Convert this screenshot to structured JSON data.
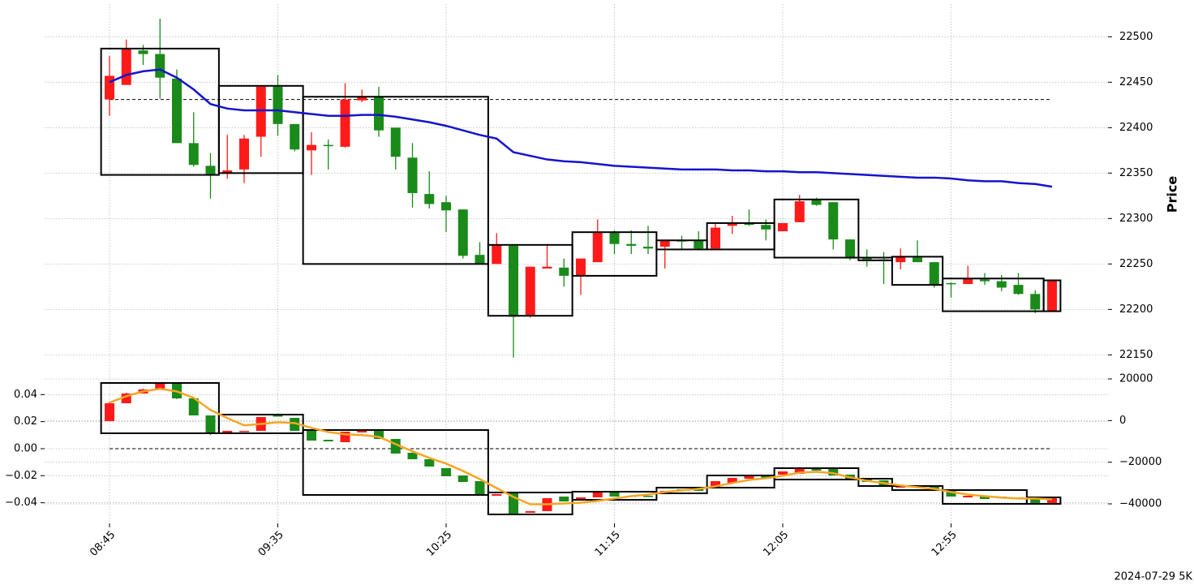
{
  "chart_data": [
    {
      "type": "candlestick",
      "ylabel": "Price",
      "y_axis_side": "right",
      "grid": true,
      "up_color": "#ff1a1a",
      "down_color": "#1a8a1a",
      "categories": [
        "08:45",
        null,
        null,
        null,
        null,
        null,
        null,
        null,
        null,
        null,
        "09:35",
        null,
        null,
        null,
        null,
        null,
        null,
        null,
        null,
        null,
        "10:25",
        null,
        null,
        null,
        null,
        null,
        null,
        null,
        null,
        null,
        "11:15",
        null,
        null,
        null,
        null,
        null,
        null,
        null,
        null,
        null,
        "12:05",
        null,
        null,
        null,
        null,
        null,
        null,
        null,
        null,
        null,
        "12:55",
        null,
        null,
        null,
        null,
        null,
        null
      ],
      "open": [
        22431,
        22447,
        22485,
        22481,
        22454,
        22383,
        22358,
        22350,
        22354,
        22390,
        22445,
        22404,
        22375,
        22381,
        22379,
        22430,
        22434,
        22400,
        22367,
        22327,
        22318,
        22310,
        22260,
        22250,
        22270,
        22194,
        22245,
        22246,
        22237,
        22252,
        22285,
        22272,
        22269,
        22269,
        22276,
        22276,
        22267,
        22292,
        22295,
        22293,
        22286,
        22296,
        22321,
        22318,
        22277,
        22257,
        22255,
        22252,
        22257,
        22252,
        22229,
        22228,
        22233,
        22231,
        22227,
        22217,
        22198
      ],
      "high": [
        22479,
        22497,
        22491,
        22520,
        22464,
        22417,
        22372,
        22392,
        22392,
        22445,
        22458,
        22404,
        22395,
        22387,
        22449,
        22442,
        22445,
        22400,
        22383,
        22352,
        22325,
        22310,
        22274,
        22284,
        22270,
        22247,
        22272,
        22256,
        22256,
        22299,
        22287,
        22287,
        22292,
        22276,
        22281,
        22286,
        22294,
        22303,
        22310,
        22299,
        22295,
        22326,
        22323,
        22318,
        22277,
        22266,
        22263,
        22267,
        22276,
        22252,
        22230,
        22248,
        22240,
        22238,
        22240,
        22221,
        22232
      ],
      "low": [
        22413,
        22447,
        22469,
        22432,
        22383,
        22357,
        22322,
        22344,
        22339,
        22368,
        22391,
        22374,
        22348,
        22354,
        22378,
        22428,
        22390,
        22354,
        22312,
        22311,
        22285,
        22256,
        22250,
        22250,
        22147,
        22191,
        22245,
        22225,
        22216,
        22252,
        22261,
        22261,
        22261,
        22245,
        22265,
        22265,
        22267,
        22283,
        22292,
        22276,
        22286,
        22296,
        22314,
        22266,
        22254,
        22247,
        22228,
        22244,
        22252,
        22224,
        22213,
        22228,
        22227,
        22220,
        22216,
        22196,
        22198
      ],
      "close": [
        22457,
        22487,
        22481,
        22455,
        22383,
        22359,
        22348,
        22353,
        22388,
        22445,
        22404,
        22376,
        22381,
        22380,
        22431,
        22434,
        22397,
        22368,
        22328,
        22316,
        22309,
        22259,
        22250,
        22271,
        22192,
        22247,
        22247,
        22237,
        22256,
        22285,
        22272,
        22270,
        22267,
        22276,
        22275,
        22267,
        22290,
        22295,
        22293,
        22288,
        22295,
        22319,
        22315,
        22277,
        22256,
        22255,
        22254,
        22258,
        22252,
        22227,
        22228,
        22234,
        22231,
        22224,
        22217,
        22200,
        22232
      ],
      "series": [
        {
          "color": "#1414cc",
          "values": [
            22450,
            22458,
            22462,
            22464,
            22455,
            22442,
            22426,
            22421,
            22419,
            22419,
            22419,
            22417,
            22415,
            22413,
            22413,
            22414,
            22414,
            22412,
            22409,
            22406,
            22402,
            22397,
            22392,
            22388,
            22373,
            22369,
            22365,
            22363,
            22362,
            22360,
            22358,
            22357,
            22356,
            22355,
            22354,
            22354,
            22354,
            22353,
            22353,
            22352,
            22352,
            22351,
            22351,
            22350,
            22349,
            22348,
            22347,
            22346,
            22345,
            22345,
            22344,
            22342,
            22341,
            22341,
            22339,
            22338,
            22335
          ]
        }
      ],
      "hline": 22431,
      "boxes": [
        {
          "x": [
            0,
            6
          ],
          "high": 22487,
          "low": 22348
        },
        {
          "x": [
            7,
            11
          ],
          "high": 22446,
          "low": 22350
        },
        {
          "x": [
            12,
            22
          ],
          "high": 22434,
          "low": 22250
        },
        {
          "x": [
            23,
            27
          ],
          "high": 22271,
          "low": 22193
        },
        {
          "x": [
            28,
            32
          ],
          "high": 22285,
          "low": 22237
        },
        {
          "x": [
            33,
            35
          ],
          "high": 22276,
          "low": 22266
        },
        {
          "x": [
            36,
            39
          ],
          "high": 22295,
          "low": 22266
        },
        {
          "x": [
            40,
            44
          ],
          "high": 22321,
          "low": 22257
        },
        {
          "x": [
            45,
            46
          ],
          "high": 22257,
          "low": 22254
        },
        {
          "x": [
            47,
            49
          ],
          "high": 22258,
          "low": 22227
        },
        {
          "x": [
            50,
            55
          ],
          "high": 22234,
          "low": 22198
        },
        {
          "x": [
            56,
            56
          ],
          "high": 22232,
          "low": 22198
        }
      ],
      "ylim": [
        22128,
        22536
      ],
      "yticks": [
        22150,
        22200,
        22250,
        22300,
        22350,
        22400,
        22450,
        22500
      ]
    },
    {
      "type": "candlestick",
      "y_axis_side": "left",
      "grid": true,
      "up_color": "#ff1a1a",
      "down_color": "#1a8a1a",
      "open": [
        0.0204,
        0.0336,
        0.0408,
        0.0438,
        0.0486,
        0.0372,
        0.0246,
        0.012,
        0.0126,
        0.0132,
        0.0246,
        0.0228,
        0.0132,
        0.0066,
        0.0048,
        0.012,
        0.0132,
        0.0072,
        -0.003,
        -0.0078,
        -0.0144,
        -0.0198,
        -0.024,
        -0.0348,
        -0.033,
        -0.0474,
        -0.0462,
        -0.0354,
        -0.0378,
        -0.036,
        -0.0324,
        -0.0348,
        -0.0348,
        -0.0324,
        -0.03,
        -0.03,
        -0.0288,
        -0.0252,
        -0.0222,
        -0.0198,
        -0.0192,
        -0.0186,
        -0.015,
        -0.015,
        -0.0192,
        -0.0222,
        -0.0234,
        -0.0288,
        -0.027,
        -0.0282,
        -0.0306,
        -0.036,
        -0.0354,
        -0.0354,
        -0.036,
        -0.0354,
        -0.0402
      ],
      "high": [
        0.0348,
        0.0414,
        0.0444,
        0.0492,
        0.0486,
        0.0372,
        0.0246,
        0.0132,
        0.0132,
        0.0234,
        0.0246,
        0.0228,
        0.0132,
        0.0066,
        0.0126,
        0.0138,
        0.0132,
        0.0072,
        -0.003,
        -0.0078,
        -0.0144,
        -0.0198,
        -0.024,
        -0.0336,
        -0.033,
        -0.0462,
        -0.0366,
        -0.0354,
        -0.036,
        -0.0324,
        -0.0324,
        -0.0348,
        -0.0348,
        -0.0312,
        -0.03,
        -0.03,
        -0.024,
        -0.0216,
        -0.0198,
        -0.0198,
        -0.0168,
        -0.0144,
        -0.015,
        -0.015,
        -0.0192,
        -0.0222,
        -0.0234,
        -0.0276,
        -0.027,
        -0.0282,
        -0.0306,
        -0.0348,
        -0.0354,
        -0.0354,
        -0.036,
        -0.0354,
        -0.0366
      ],
      "low": [
        0.0204,
        0.0336,
        0.0408,
        0.0438,
        0.0366,
        0.0246,
        0.0102,
        0.012,
        0.0126,
        0.0132,
        0.024,
        0.0132,
        0.006,
        0.0054,
        0.0048,
        0.012,
        0.0072,
        -0.0036,
        -0.0078,
        -0.0132,
        -0.0204,
        -0.0246,
        -0.0342,
        -0.0348,
        -0.0492,
        -0.0474,
        -0.0462,
        -0.039,
        -0.0378,
        -0.036,
        -0.0354,
        -0.0354,
        -0.0354,
        -0.0324,
        -0.0306,
        -0.0312,
        -0.0288,
        -0.0252,
        -0.0222,
        -0.0222,
        -0.0192,
        -0.0186,
        -0.0162,
        -0.0198,
        -0.0228,
        -0.0246,
        -0.0276,
        -0.0288,
        -0.0288,
        -0.0306,
        -0.0354,
        -0.036,
        -0.0372,
        -0.0366,
        -0.0366,
        -0.0402,
        -0.0402
      ],
      "close": [
        0.0336,
        0.0408,
        0.0438,
        0.0486,
        0.0372,
        0.0246,
        0.0114,
        0.0132,
        0.0132,
        0.0234,
        0.024,
        0.0132,
        0.006,
        0.0054,
        0.0126,
        0.0138,
        0.0072,
        -0.0036,
        -0.0078,
        -0.0132,
        -0.0204,
        -0.0246,
        -0.0342,
        -0.0336,
        -0.0486,
        -0.0462,
        -0.0366,
        -0.039,
        -0.036,
        -0.0324,
        -0.0354,
        -0.0354,
        -0.0354,
        -0.0312,
        -0.0306,
        -0.0312,
        -0.024,
        -0.0216,
        -0.0198,
        -0.0222,
        -0.0168,
        -0.0144,
        -0.0162,
        -0.0198,
        -0.0228,
        -0.0246,
        -0.0276,
        -0.0276,
        -0.0288,
        -0.0306,
        -0.0354,
        -0.0348,
        -0.0372,
        -0.0366,
        -0.0366,
        -0.0402,
        -0.0366
      ],
      "series": [
        {
          "color": "#f5a623",
          "axis": "y2",
          "values": [
            8600,
            11700,
            14000,
            15200,
            14000,
            10900,
            5100,
            1200,
            -2300,
            -1600,
            -800,
            -1200,
            -3500,
            -5500,
            -6600,
            -7000,
            -7800,
            -11300,
            -14800,
            -17900,
            -20700,
            -24200,
            -28100,
            -32400,
            -36700,
            -40200,
            -40200,
            -39800,
            -39400,
            -38600,
            -37400,
            -36300,
            -35500,
            -34300,
            -33500,
            -32800,
            -31600,
            -30000,
            -28500,
            -27700,
            -26500,
            -25000,
            -24600,
            -25300,
            -27300,
            -28900,
            -30000,
            -31200,
            -32000,
            -32800,
            -34300,
            -35500,
            -36300,
            -37000,
            -37400,
            -37400,
            -37800
          ]
        }
      ],
      "hline": 0,
      "boxes": [
        {
          "x": [
            0,
            6
          ],
          "high": 0.0486,
          "low": 0.0114
        },
        {
          "x": [
            7,
            11
          ],
          "high": 0.0252,
          "low": 0.0114
        },
        {
          "x": [
            12,
            22
          ],
          "high": 0.0138,
          "low": -0.0342
        },
        {
          "x": [
            23,
            27
          ],
          "high": -0.0324,
          "low": -0.0486
        },
        {
          "x": [
            28,
            32
          ],
          "high": -0.0318,
          "low": -0.0378
        },
        {
          "x": [
            33,
            35
          ],
          "high": -0.0288,
          "low": -0.033
        },
        {
          "x": [
            36,
            39
          ],
          "high": -0.0198,
          "low": -0.0288
        },
        {
          "x": [
            40,
            44
          ],
          "high": -0.0144,
          "low": -0.0228
        },
        {
          "x": [
            45,
            46
          ],
          "high": -0.0222,
          "low": -0.0276
        },
        {
          "x": [
            47,
            49
          ],
          "high": -0.0276,
          "low": -0.0306
        },
        {
          "x": [
            50,
            54
          ],
          "high": -0.0306,
          "low": -0.0408
        },
        {
          "x": [
            55,
            56
          ],
          "high": -0.036,
          "low": -0.0408
        }
      ],
      "ylim": [
        -0.0552,
        0.054
      ],
      "yticks": [
        {
          "value": -0.04,
          "label": "−0.04"
        },
        {
          "value": -0.02,
          "label": "−0.02"
        },
        {
          "value": 0,
          "label": "0.00"
        },
        0.02,
        0.04
      ],
      "y2lim": [
        -49350,
        21560
      ],
      "y2ticks": [
        {
          "value": -40000,
          "label": "−40000"
        },
        {
          "value": -20000,
          "label": "−20000"
        },
        0,
        20000
      ],
      "annotation": "2024-07-29 5K"
    }
  ]
}
